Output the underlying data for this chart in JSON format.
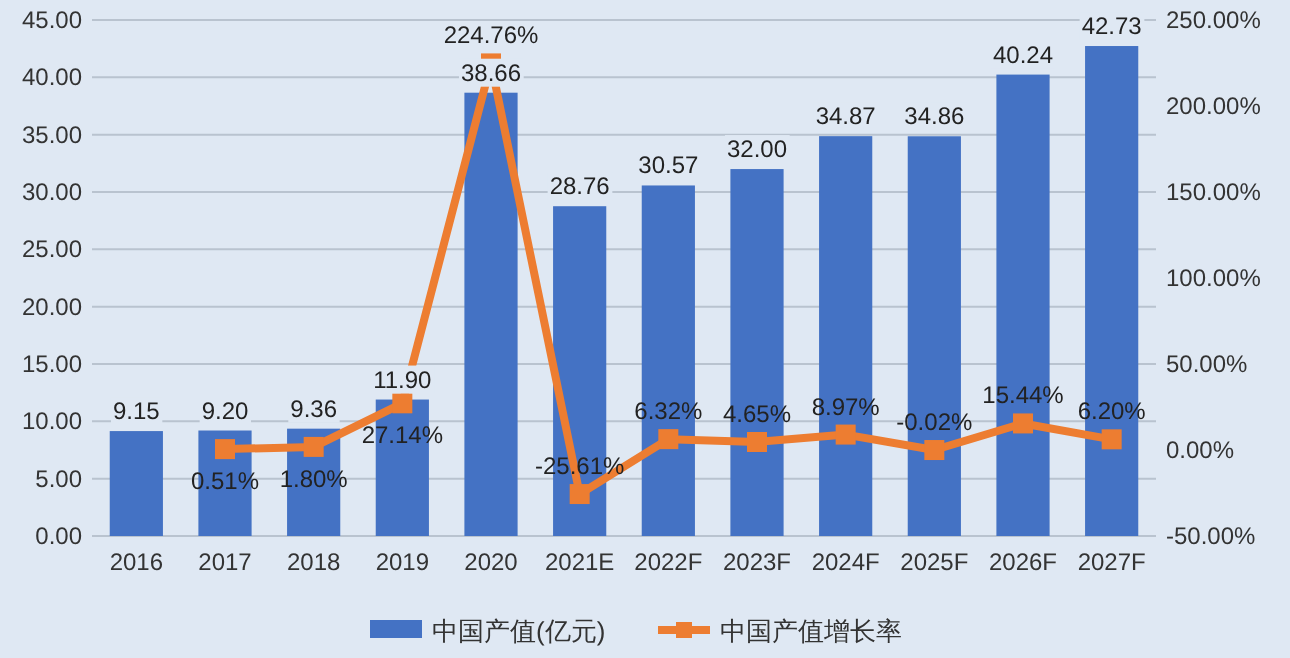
{
  "chart_data": {
    "type": "bar",
    "categories": [
      "2016",
      "2017",
      "2018",
      "2019",
      "2020",
      "2021E",
      "2022F",
      "2023F",
      "2024F",
      "2025F",
      "2026F",
      "2027F"
    ],
    "series": [
      {
        "name": "中国产值(亿元)",
        "color": "#4472c4",
        "values": [
          9.15,
          9.2,
          9.36,
          11.9,
          38.66,
          28.76,
          30.57,
          32.0,
          34.87,
          34.86,
          40.24,
          42.73
        ],
        "value_labels": [
          "9.15",
          "9.20",
          "9.36",
          "11.90",
          "38.66",
          "28.76",
          "30.57",
          "32.00",
          "34.87",
          "34.86",
          "40.24",
          "42.73"
        ]
      },
      {
        "name": "中国产值增长率",
        "type": "line",
        "axis": "y2",
        "color": "#ed7d31",
        "marker": "square",
        "values": [
          null,
          0.51,
          1.8,
          27.14,
          224.76,
          -25.61,
          6.32,
          4.65,
          8.97,
          -0.02,
          15.44,
          6.2
        ],
        "value_labels": [
          null,
          "0.51%",
          "1.80%",
          "27.14%",
          "224.76%",
          "-25.61%",
          "6.32%",
          "4.65%",
          "8.97%",
          "-0.02%",
          "15.44%",
          "6.20%"
        ]
      }
    ],
    "ylim": [
      0,
      45
    ],
    "yticks": [
      {
        "value": 0,
        "label": "0.00"
      },
      {
        "value": 5,
        "label": "5.00"
      },
      {
        "value": 10,
        "label": "10.00"
      },
      {
        "value": 15,
        "label": "15.00"
      },
      {
        "value": 20,
        "label": "20.00"
      },
      {
        "value": 25,
        "label": "25.00"
      },
      {
        "value": 30,
        "label": "30.00"
      },
      {
        "value": 35,
        "label": "35.00"
      },
      {
        "value": 40,
        "label": "40.00"
      },
      {
        "value": 45,
        "label": "45.00"
      }
    ],
    "y2lim": [
      -50,
      250
    ],
    "y2ticks": [
      {
        "value": -50,
        "label": "-50.00%"
      },
      {
        "value": 0,
        "label": "0.00%"
      },
      {
        "value": 50,
        "label": "50.00%"
      },
      {
        "value": 100,
        "label": "100.00%"
      },
      {
        "value": 150,
        "label": "150.00%"
      },
      {
        "value": 200,
        "label": "200.00%"
      },
      {
        "value": 250,
        "label": "250.00%"
      }
    ],
    "grid": "y",
    "legend": "bottom"
  }
}
